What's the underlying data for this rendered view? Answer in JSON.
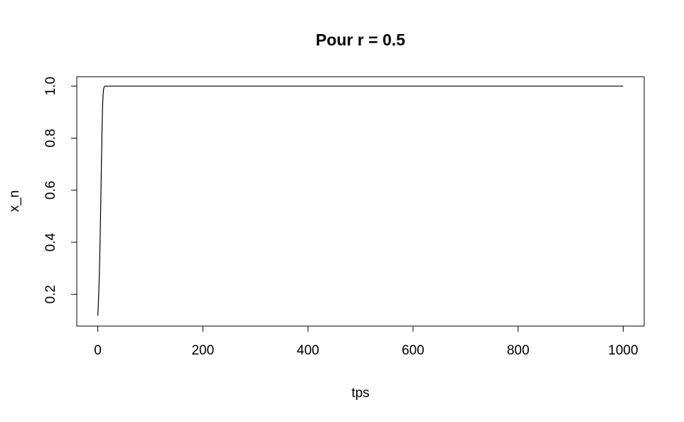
{
  "chart_data": {
    "type": "line",
    "title": "Pour r =  0.5",
    "xlabel": "tps",
    "ylabel": "x_n",
    "xlim": [
      -40,
      1040
    ],
    "ylim": [
      0.078,
      1.036
    ],
    "xticks": [
      0,
      200,
      400,
      600,
      800,
      1000
    ],
    "xtick_labels": [
      "0",
      "200",
      "400",
      "600",
      "800",
      "1000"
    ],
    "yticks": [
      0.2,
      0.4,
      0.6,
      0.8,
      1.0
    ],
    "ytick_labels": [
      "0.2",
      "0.4",
      "0.6",
      "0.8",
      "1.0"
    ],
    "grid": false,
    "legend": "none",
    "line_color": "#000000",
    "series": [
      {
        "x": [
          0,
          1,
          2,
          3,
          4,
          5,
          6,
          7,
          8,
          9,
          10,
          11,
          12,
          13,
          14,
          15,
          20,
          50,
          100,
          200,
          400,
          600,
          800,
          1000
        ],
        "values": [
          0.118,
          0.16,
          0.217,
          0.284,
          0.371,
          0.474,
          0.592,
          0.716,
          0.83,
          0.916,
          0.966,
          0.988,
          0.996,
          0.999,
          1.0,
          1.0,
          1.0,
          1.0,
          1.0,
          1.0,
          1.0,
          1.0,
          1.0,
          1.0
        ]
      }
    ]
  }
}
